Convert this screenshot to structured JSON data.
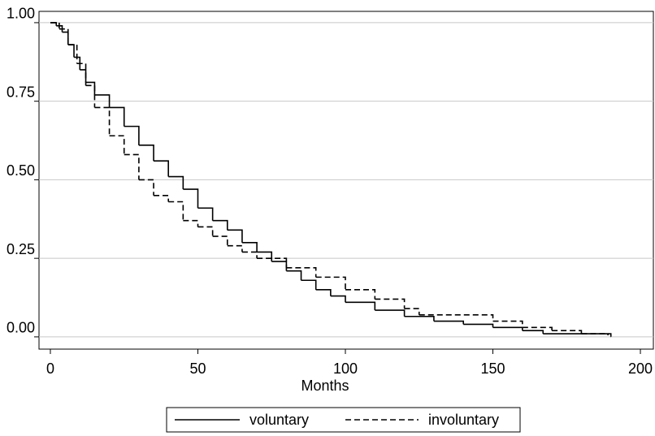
{
  "chart_data": {
    "type": "line",
    "step": "post",
    "x_label": "Months",
    "xlim": [
      -3.85,
      204.4
    ],
    "xticks": [
      0,
      50,
      100,
      150,
      200
    ],
    "ylim": [
      -0.039,
      1.036
    ],
    "yticks": [
      {
        "value": 0,
        "label": "0.00"
      },
      {
        "value": 0.25,
        "label": "0.25"
      },
      {
        "value": 0.5,
        "label": "0.50"
      },
      {
        "value": 0.75,
        "label": "0.75"
      },
      {
        "value": 1,
        "label": "1.00"
      }
    ],
    "grid": true,
    "legend": "bottom",
    "series": [
      {
        "name": "voluntary",
        "color": "#000000",
        "dash": false,
        "x": [
          0,
          2,
          4,
          6,
          8,
          10,
          12,
          15,
          20,
          25,
          30,
          35,
          40,
          45,
          50,
          55,
          60,
          65,
          70,
          75,
          80,
          85,
          90,
          95,
          100,
          110,
          120,
          130,
          140,
          150,
          160,
          167,
          189
        ],
        "values": [
          1.0,
          0.99,
          0.97,
          0.93,
          0.89,
          0.85,
          0.81,
          0.77,
          0.73,
          0.67,
          0.61,
          0.56,
          0.51,
          0.47,
          0.41,
          0.37,
          0.34,
          0.3,
          0.27,
          0.24,
          0.21,
          0.18,
          0.15,
          0.13,
          0.11,
          0.085,
          0.065,
          0.05,
          0.04,
          0.03,
          0.02,
          0.01,
          0.005
        ]
      },
      {
        "name": "involuntary",
        "color": "#000000",
        "dash": true,
        "x": [
          0,
          3,
          6,
          9,
          12,
          15,
          20,
          25,
          30,
          35,
          40,
          45,
          50,
          55,
          60,
          65,
          70,
          80,
          90,
          100,
          110,
          120,
          125,
          150,
          160,
          170,
          180,
          190
        ],
        "values": [
          1.0,
          0.98,
          0.93,
          0.87,
          0.8,
          0.73,
          0.64,
          0.58,
          0.5,
          0.45,
          0.43,
          0.37,
          0.35,
          0.32,
          0.29,
          0.27,
          0.25,
          0.22,
          0.19,
          0.15,
          0.12,
          0.09,
          0.07,
          0.05,
          0.03,
          0.02,
          0.01,
          0.0
        ]
      }
    ]
  }
}
